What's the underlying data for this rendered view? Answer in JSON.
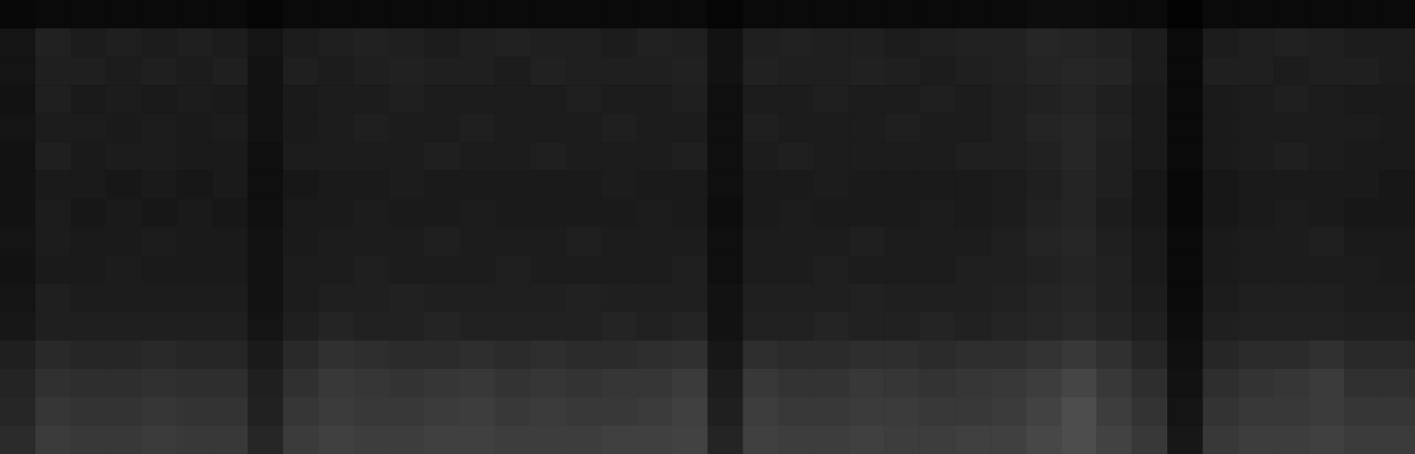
{
  "chart_data": {
    "type": "heatmap",
    "tick_labels": false,
    "zlim": [
      0,
      100
    ],
    "cells": [
      [
        3,
        4,
        4,
        4,
        4,
        4,
        4,
        2,
        4,
        4,
        4,
        4,
        4,
        4,
        4,
        4,
        4,
        4,
        4,
        4,
        2,
        4,
        4,
        4,
        4,
        4,
        4,
        4,
        4,
        5,
        5,
        4,
        4,
        1,
        4,
        4,
        4,
        4,
        4,
        4
      ],
      [
        8,
        13,
        11,
        12,
        11,
        12,
        11,
        8,
        11,
        12,
        13,
        12,
        11,
        12,
        13,
        12,
        12,
        11,
        13,
        12,
        7,
        12,
        13,
        12,
        12,
        11,
        12,
        13,
        13,
        15,
        14,
        13,
        11,
        4,
        11,
        12,
        13,
        12,
        11,
        11
      ],
      [
        8,
        12,
        12,
        11,
        12,
        11,
        12,
        7,
        12,
        11,
        12,
        13,
        12,
        12,
        11,
        13,
        12,
        12,
        12,
        13,
        7,
        13,
        12,
        12,
        13,
        12,
        11,
        12,
        13,
        14,
        15,
        14,
        11,
        4,
        12,
        12,
        11,
        12,
        12,
        11
      ],
      [
        7,
        12,
        10,
        11,
        10,
        11,
        10,
        7,
        10,
        11,
        11,
        12,
        11,
        11,
        11,
        11,
        12,
        11,
        11,
        12,
        6,
        11,
        11,
        12,
        11,
        11,
        12,
        11,
        12,
        13,
        14,
        12,
        10,
        4,
        10,
        11,
        12,
        11,
        10,
        10
      ],
      [
        8,
        11,
        11,
        10,
        11,
        10,
        11,
        7,
        10,
        11,
        12,
        11,
        11,
        12,
        11,
        11,
        11,
        12,
        11,
        11,
        6,
        12,
        11,
        11,
        11,
        12,
        11,
        11,
        12,
        14,
        15,
        13,
        10,
        4,
        10,
        11,
        11,
        11,
        11,
        10
      ],
      [
        7,
        12,
        10,
        11,
        11,
        10,
        10,
        6,
        11,
        11,
        11,
        11,
        12,
        11,
        11,
        12,
        11,
        11,
        11,
        12,
        6,
        11,
        12,
        11,
        11,
        11,
        11,
        12,
        12,
        13,
        15,
        12,
        10,
        4,
        10,
        11,
        12,
        11,
        10,
        10
      ],
      [
        7,
        10,
        10,
        9,
        10,
        9,
        10,
        6,
        9,
        10,
        10,
        11,
        10,
        10,
        10,
        10,
        10,
        11,
        10,
        10,
        6,
        10,
        10,
        11,
        10,
        10,
        10,
        10,
        11,
        12,
        14,
        12,
        9,
        3,
        9,
        10,
        10,
        10,
        10,
        9
      ],
      [
        7,
        11,
        9,
        10,
        9,
        10,
        9,
        6,
        10,
        10,
        11,
        10,
        10,
        11,
        10,
        10,
        10,
        10,
        11,
        10,
        5,
        10,
        11,
        10,
        10,
        10,
        11,
        10,
        11,
        13,
        14,
        11,
        9,
        3,
        9,
        10,
        11,
        10,
        9,
        9
      ],
      [
        8,
        11,
        10,
        10,
        11,
        10,
        10,
        7,
        10,
        11,
        11,
        11,
        12,
        11,
        11,
        11,
        12,
        11,
        11,
        11,
        6,
        11,
        11,
        11,
        12,
        11,
        11,
        11,
        12,
        14,
        15,
        12,
        10,
        4,
        10,
        11,
        11,
        12,
        10,
        10
      ],
      [
        7,
        10,
        10,
        11,
        10,
        10,
        10,
        7,
        11,
        11,
        12,
        11,
        11,
        11,
        12,
        11,
        11,
        11,
        11,
        12,
        6,
        11,
        11,
        12,
        11,
        11,
        11,
        12,
        12,
        13,
        14,
        13,
        10,
        4,
        10,
        11,
        11,
        11,
        11,
        10
      ],
      [
        8,
        12,
        11,
        11,
        11,
        11,
        11,
        7,
        11,
        12,
        12,
        13,
        12,
        12,
        12,
        12,
        13,
        12,
        12,
        12,
        7,
        12,
        12,
        12,
        13,
        12,
        12,
        12,
        13,
        14,
        15,
        13,
        11,
        4,
        11,
        12,
        12,
        12,
        11,
        11
      ],
      [
        9,
        12,
        12,
        12,
        12,
        12,
        12,
        8,
        12,
        14,
        13,
        13,
        14,
        13,
        13,
        13,
        13,
        14,
        13,
        14,
        7,
        13,
        13,
        14,
        13,
        13,
        14,
        13,
        14,
        15,
        16,
        14,
        12,
        5,
        12,
        13,
        13,
        13,
        12,
        12
      ],
      [
        12,
        16,
        15,
        15,
        16,
        15,
        15,
        10,
        16,
        19,
        18,
        17,
        17,
        18,
        17,
        18,
        17,
        17,
        18,
        19,
        9,
        18,
        17,
        17,
        18,
        18,
        17,
        18,
        18,
        20,
        22,
        19,
        15,
        6,
        15,
        17,
        17,
        19,
        16,
        16
      ],
      [
        14,
        19,
        18,
        18,
        19,
        18,
        18,
        12,
        19,
        22,
        21,
        20,
        21,
        22,
        20,
        21,
        20,
        21,
        21,
        23,
        11,
        22,
        20,
        20,
        22,
        21,
        20,
        21,
        22,
        24,
        27,
        22,
        18,
        7,
        18,
        20,
        21,
        23,
        19,
        19
      ],
      [
        15,
        21,
        20,
        20,
        21,
        20,
        20,
        13,
        21,
        23,
        22,
        22,
        23,
        24,
        22,
        23,
        22,
        22,
        23,
        25,
        12,
        24,
        22,
        22,
        23,
        23,
        22,
        22,
        23,
        26,
        30,
        24,
        20,
        8,
        20,
        22,
        22,
        23,
        21,
        21
      ],
      [
        17,
        23,
        22,
        22,
        23,
        22,
        22,
        15,
        23,
        25,
        24,
        24,
        25,
        25,
        24,
        24,
        24,
        25,
        25,
        26,
        14,
        25,
        24,
        24,
        25,
        24,
        24,
        25,
        25,
        28,
        30,
        26,
        22,
        9,
        22,
        24,
        24,
        25,
        23,
        23
      ]
    ]
  }
}
